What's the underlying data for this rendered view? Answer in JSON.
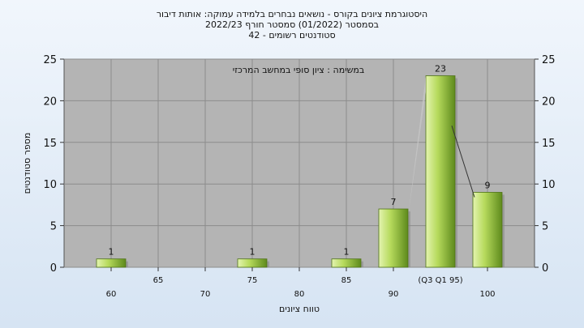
{
  "header": {
    "title_line1": "היסטוגרמת ציונים בקורס - נושאים נבחרים בלמידה עמוקה: אותות דיבור",
    "title_line2": "בסמסטר (01/2022) סמסטר חורף 2022/23",
    "title_line3": "42 - סטודנטים רשומים"
  },
  "chart_data": {
    "type": "bar",
    "title": "היסטוגרמת ציונים בקורס - נושאים נבחרים בלמידה עמוקה: אותות דיבור",
    "subtitle": "בסמסטר (01/2022) סמסטר חורף 2022/23",
    "annotation": "במשימה : ציון סופי במחשב המרכזי",
    "xlabel": "טווח ציונים",
    "ylabel": "מספר סטודנטים",
    "ylim": [
      0,
      25
    ],
    "yticks": [
      0,
      5,
      10,
      15,
      20,
      25
    ],
    "xlim": [
      55,
      105
    ],
    "xticks": [
      60,
      65,
      70,
      75,
      80,
      85,
      90,
      100
    ],
    "quartile_label": "(Q3 Q1 95)",
    "quartile_label_x": 95,
    "bars": [
      {
        "x": 60,
        "value": 1
      },
      {
        "x": 75,
        "value": 1
      },
      {
        "x": 85,
        "value": 1
      },
      {
        "x": 90,
        "value": 7
      },
      {
        "x": 95,
        "value": 23
      },
      {
        "x": 100,
        "value": 9
      }
    ],
    "grid": true,
    "colors": {
      "plot_bg": "#b4b4b4",
      "bar_light": "#dcf0a0",
      "bar_mid": "#a8d04c",
      "bar_dark": "#5e8a1c",
      "grid": "#8c8c8c"
    }
  }
}
